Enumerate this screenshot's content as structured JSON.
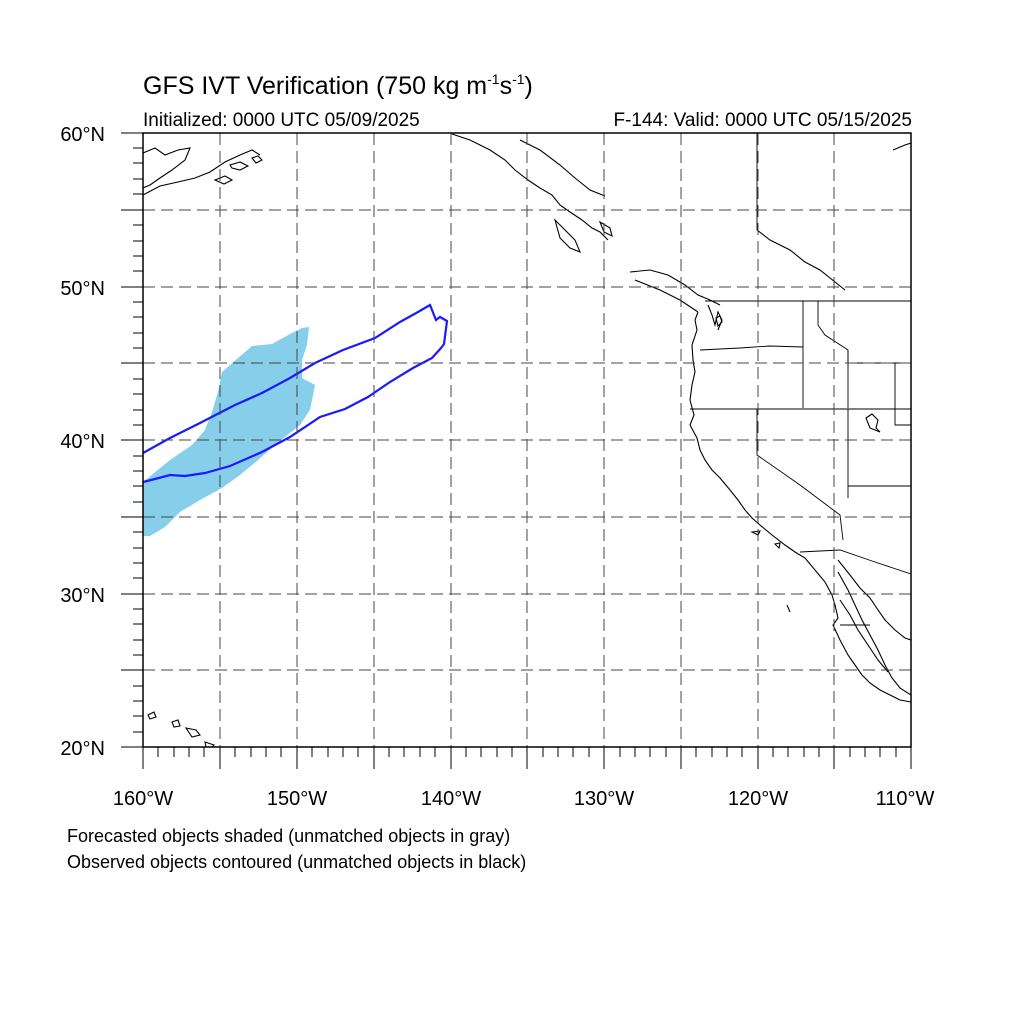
{
  "title": {
    "main_prefix": "GFS IVT Verification (750 kg m",
    "sup1": "-1",
    "mid": "s",
    "sup2": "-1",
    "suffix": ")",
    "initialized": "Initialized: 0000 UTC 05/09/2025",
    "valid": "F-144: Valid: 0000 UTC 05/15/2025"
  },
  "axes": {
    "lon_labels": [
      "160°W",
      "150°W",
      "140°W",
      "130°W",
      "120°W",
      "110°W"
    ],
    "lat_labels": [
      "60°N",
      "50°N",
      "40°N",
      "30°N",
      "20°N"
    ]
  },
  "footer": {
    "line1": "Forecasted objects shaded (unmatched objects in gray)",
    "line2": "Observed objects contoured (unmatched objects in black)"
  },
  "colors": {
    "forecast_fill": "#87ceeb",
    "observed_contour": "#1a1aff",
    "coastline": "#000000",
    "grid": "#444444"
  },
  "map_extent": {
    "lon": [
      -160,
      -110
    ],
    "lat": [
      20,
      60
    ]
  }
}
